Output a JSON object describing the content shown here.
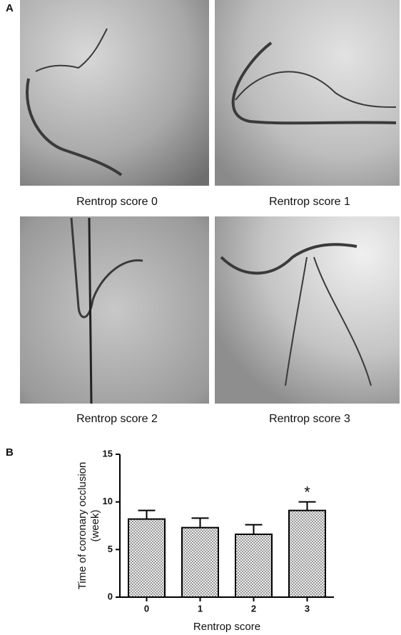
{
  "panel_a": {
    "label": "A",
    "captions": [
      "Rentrop score 0",
      "Rentrop score 1",
      "Rentrop score 2",
      "Rentrop score 3"
    ]
  },
  "panel_b": {
    "label": "B"
  },
  "chart_data": {
    "type": "bar",
    "ylabel": [
      "Time of coronary occlusion",
      "(week)"
    ],
    "xlabel": "Rentrop score",
    "categories": [
      "0",
      "1",
      "2",
      "3"
    ],
    "values": [
      8.2,
      7.3,
      6.6,
      9.1
    ],
    "errors": [
      0.9,
      1.0,
      1.0,
      0.9
    ],
    "ylim": [
      0,
      15
    ],
    "yticks": [
      0,
      5,
      10,
      15
    ],
    "annotations": [
      {
        "text": "*",
        "x": "3"
      }
    ]
  }
}
